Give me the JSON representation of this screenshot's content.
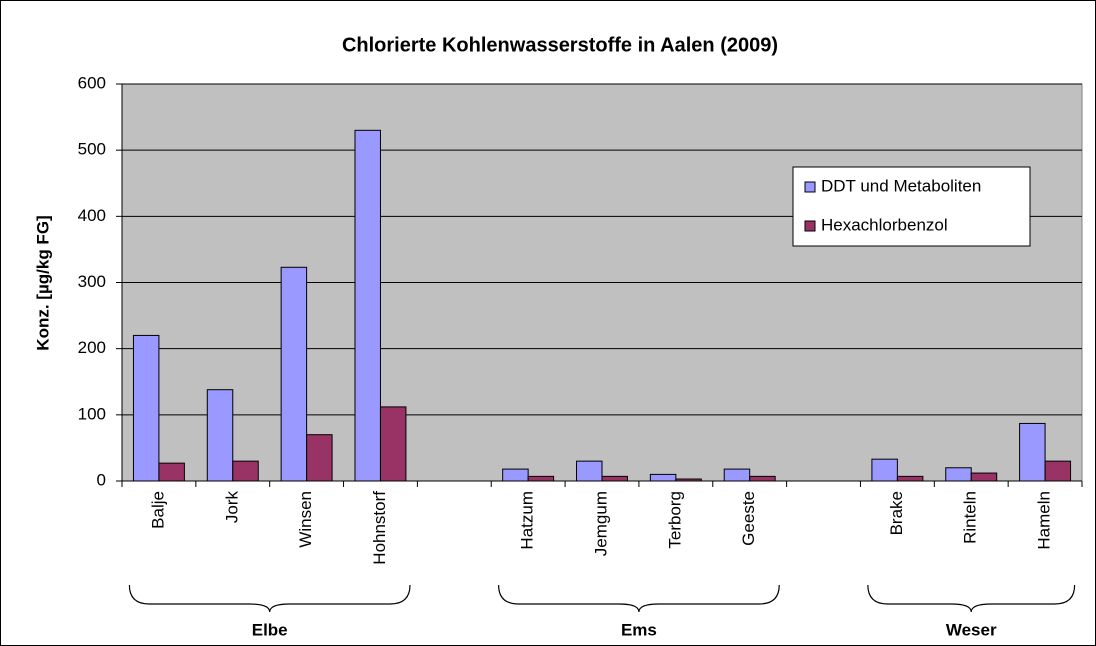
{
  "chart_data": {
    "type": "bar",
    "title": "Chlorierte Kohlenwasserstoffe in Aalen (2009)",
    "y_label": "Konz. [µg/kg FG]",
    "categories": [
      "Balje",
      "Jork",
      "Winsen",
      "Hohnstorf",
      null,
      "Hatzum",
      "Jemgum",
      "Terborg",
      "Geeste",
      null,
      "Brake",
      "Rinteln",
      "Hameln"
    ],
    "series": [
      {
        "name": "DDT und Metaboliten",
        "color": "#9999ff",
        "values": [
          220,
          138,
          323,
          530,
          null,
          18,
          30,
          10,
          18,
          null,
          33,
          20,
          87
        ]
      },
      {
        "name": "Hexachlorbenzol",
        "color": "#993366",
        "values": [
          27,
          30,
          70,
          112,
          null,
          7,
          7,
          3,
          7,
          null,
          7,
          12,
          30
        ]
      }
    ],
    "groups": [
      {
        "name": "Elbe",
        "categories": [
          0,
          3
        ]
      },
      {
        "name": "Ems",
        "categories": [
          5,
          8
        ]
      },
      {
        "name": "Weser",
        "categories": [
          10,
          12
        ]
      }
    ],
    "ylim": [
      0,
      600
    ],
    "yticks": [
      0,
      100,
      200,
      300,
      400,
      500,
      600
    ],
    "grid": true,
    "legend": "right"
  }
}
